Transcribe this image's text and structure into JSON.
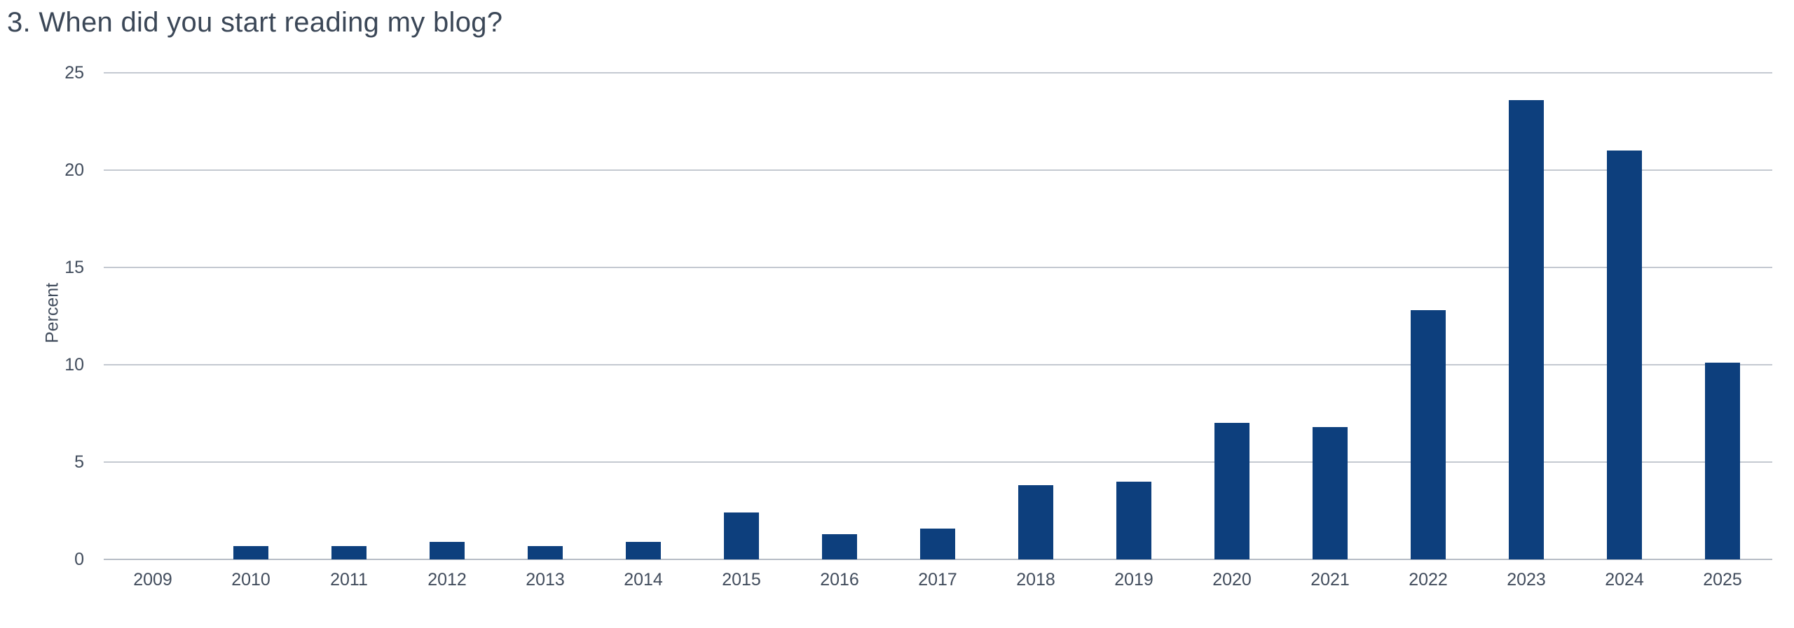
{
  "page": {
    "background_color": "#ffffff"
  },
  "chart_data": {
    "type": "bar",
    "title": "3. When did you start reading my blog?",
    "xlabel": "",
    "ylabel": "Percent",
    "categories": [
      "2009",
      "2010",
      "2011",
      "2012",
      "2013",
      "2014",
      "2015",
      "2016",
      "2017",
      "2018",
      "2019",
      "2020",
      "2021",
      "2022",
      "2023",
      "2024",
      "2025"
    ],
    "values": [
      0,
      0.7,
      0.7,
      0.9,
      0.7,
      0.9,
      2.4,
      1.3,
      1.6,
      3.8,
      4.0,
      7.0,
      6.8,
      12.8,
      23.6,
      21.0,
      10.1
    ],
    "ylim": [
      0,
      25
    ],
    "yticks": [
      0,
      5,
      10,
      15,
      20,
      25
    ],
    "grid": true,
    "legend": false,
    "bar_color": "#0d3f7d",
    "gridline_color": "#c4c9d1",
    "axis_line_color": "#b6bcc5",
    "title_color": "#3b4757",
    "tick_label_color": "#414c5c"
  }
}
